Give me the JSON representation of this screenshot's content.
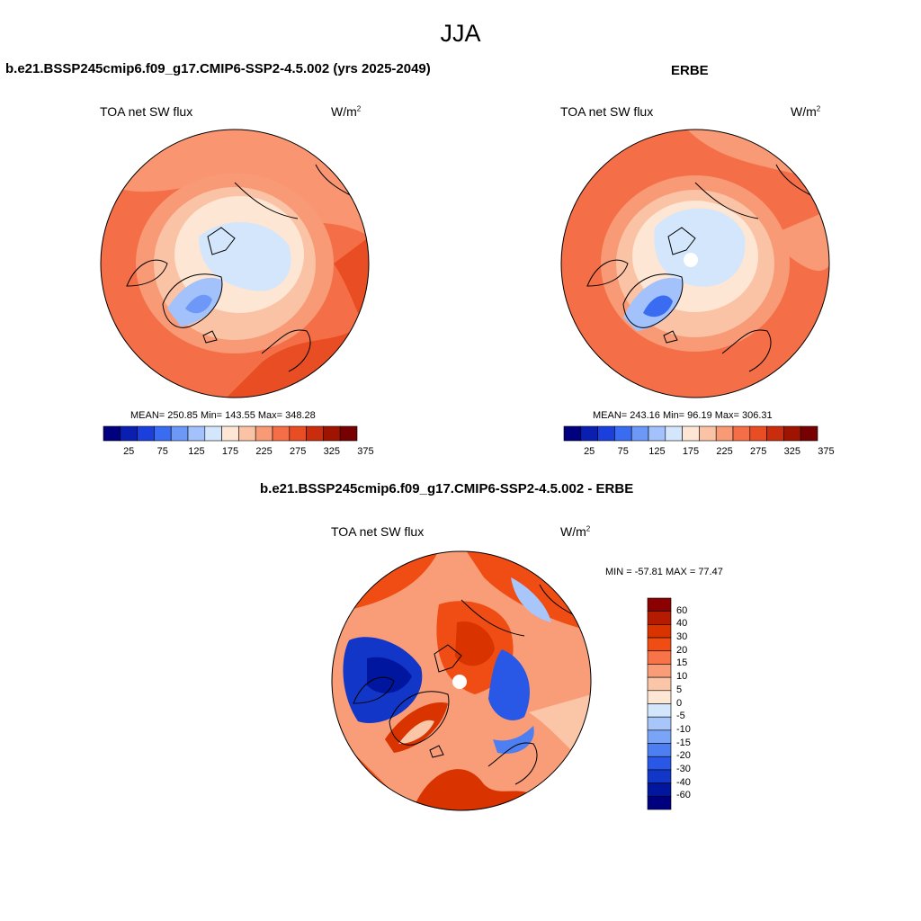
{
  "title": "JJA",
  "panels": [
    {
      "id": "model",
      "heading": "b.e21.BSSP245cmip6.f09_g17.CMIP6-SSP2-4.5.002 (yrs 2025-2049)",
      "variable": "TOA net SW flux",
      "units": "W/m",
      "units_sup": "2",
      "stats": "MEAN= 250.85  Min= 143.55  Max= 348.28"
    },
    {
      "id": "obs",
      "heading": "ERBE",
      "variable": "TOA net SW flux",
      "units": "W/m",
      "units_sup": "2",
      "stats": "MEAN= 243.16  Min=  96.19  Max= 306.31"
    },
    {
      "id": "diff",
      "heading": "b.e21.BSSP245cmip6.f09_g17.CMIP6-SSP2-4.5.002 - ERBE",
      "variable": "TOA net SW flux",
      "units": "W/m",
      "units_sup": "2",
      "stats": "MIN = -57.81 MAX =  77.47"
    }
  ],
  "colorbar_abs": {
    "labels": [
      "25",
      "75",
      "125",
      "175",
      "225",
      "275",
      "325",
      "375"
    ],
    "colors": [
      "#00007f",
      "#0a1fb0",
      "#1b3fdc",
      "#3a6cf2",
      "#6d98f7",
      "#a3c1fa",
      "#d4e6fc",
      "#fde6d3",
      "#fbc3a6",
      "#f99a76",
      "#f46f47",
      "#e84d23",
      "#c92d0d",
      "#9e1400",
      "#770000"
    ]
  },
  "colorbar_diff": {
    "labels": [
      "60",
      "40",
      "30",
      "20",
      "15",
      "10",
      "5",
      "0",
      "-5",
      "-10",
      "-15",
      "-20",
      "-30",
      "-40",
      "-60"
    ],
    "colors": [
      "#8b0000",
      "#b41b00",
      "#d93300",
      "#f04d14",
      "#f67448",
      "#f99d78",
      "#fbc6a8",
      "#fde6d3",
      "#d4e6fc",
      "#a8c6fa",
      "#7aa5f7",
      "#4e7ff2",
      "#2a58e6",
      "#1236c8",
      "#00169e",
      "#00007f"
    ]
  }
}
